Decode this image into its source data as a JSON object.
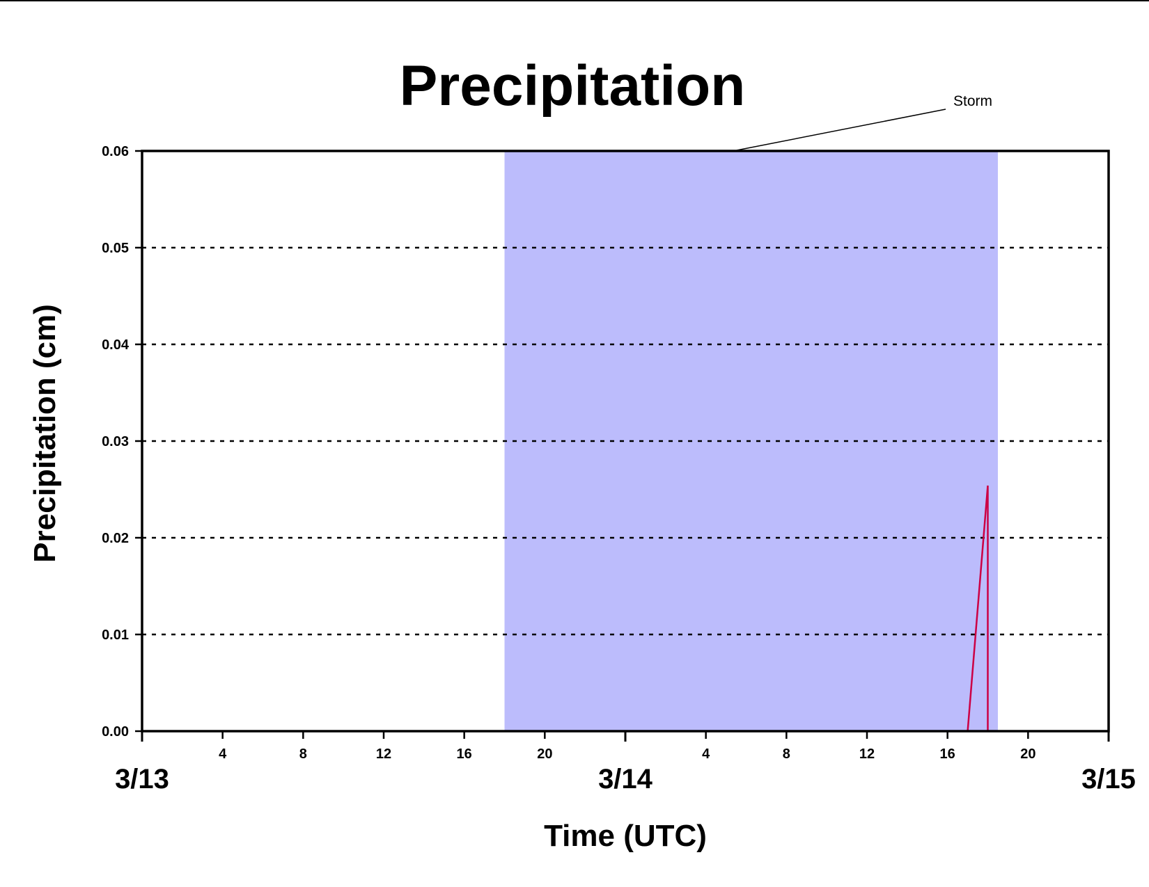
{
  "chart_data": {
    "type": "line",
    "title": "Precipitation",
    "xlabel": "Time (UTC)",
    "ylabel": "Precipitation (cm)",
    "ylim": [
      0,
      0.06
    ],
    "yticks": [
      "0.00",
      "0.01",
      "0.02",
      "0.03",
      "0.04",
      "0.05",
      "0.06"
    ],
    "xlim": [
      "3/13 00:00",
      "3/15 00:00"
    ],
    "x_hour_ticks": [
      {
        "time": "3/13 04:00",
        "label": "4"
      },
      {
        "time": "3/13 08:00",
        "label": "8"
      },
      {
        "time": "3/13 12:00",
        "label": "12"
      },
      {
        "time": "3/13 16:00",
        "label": "16"
      },
      {
        "time": "3/13 20:00",
        "label": "20"
      },
      {
        "time": "3/14 04:00",
        "label": "4"
      },
      {
        "time": "3/14 08:00",
        "label": "8"
      },
      {
        "time": "3/14 12:00",
        "label": "12"
      },
      {
        "time": "3/14 16:00",
        "label": "16"
      },
      {
        "time": "3/14 20:00",
        "label": "20"
      }
    ],
    "x_date_ticks": [
      {
        "time": "3/13 00:00",
        "label": "3/13"
      },
      {
        "time": "3/14 00:00",
        "label": "3/14"
      },
      {
        "time": "3/15 00:00",
        "label": "3/15"
      }
    ],
    "grid": "horizontal dotted",
    "series": [
      {
        "color": "#cc0044",
        "points": [
          {
            "x": "3/13 00:00",
            "y": 0
          },
          {
            "x": "3/14 17:00",
            "y": 0
          },
          {
            "x": "3/14 18:00",
            "y": 0.0254
          },
          {
            "x": "3/14 18:00",
            "y": 0
          },
          {
            "x": "3/15 00:00",
            "y": 0
          }
        ]
      }
    ],
    "shaded_region": {
      "label": "Storm",
      "start": "3/13 18:00",
      "end": "3/14 18:30",
      "color": "#bcbcfc"
    }
  }
}
